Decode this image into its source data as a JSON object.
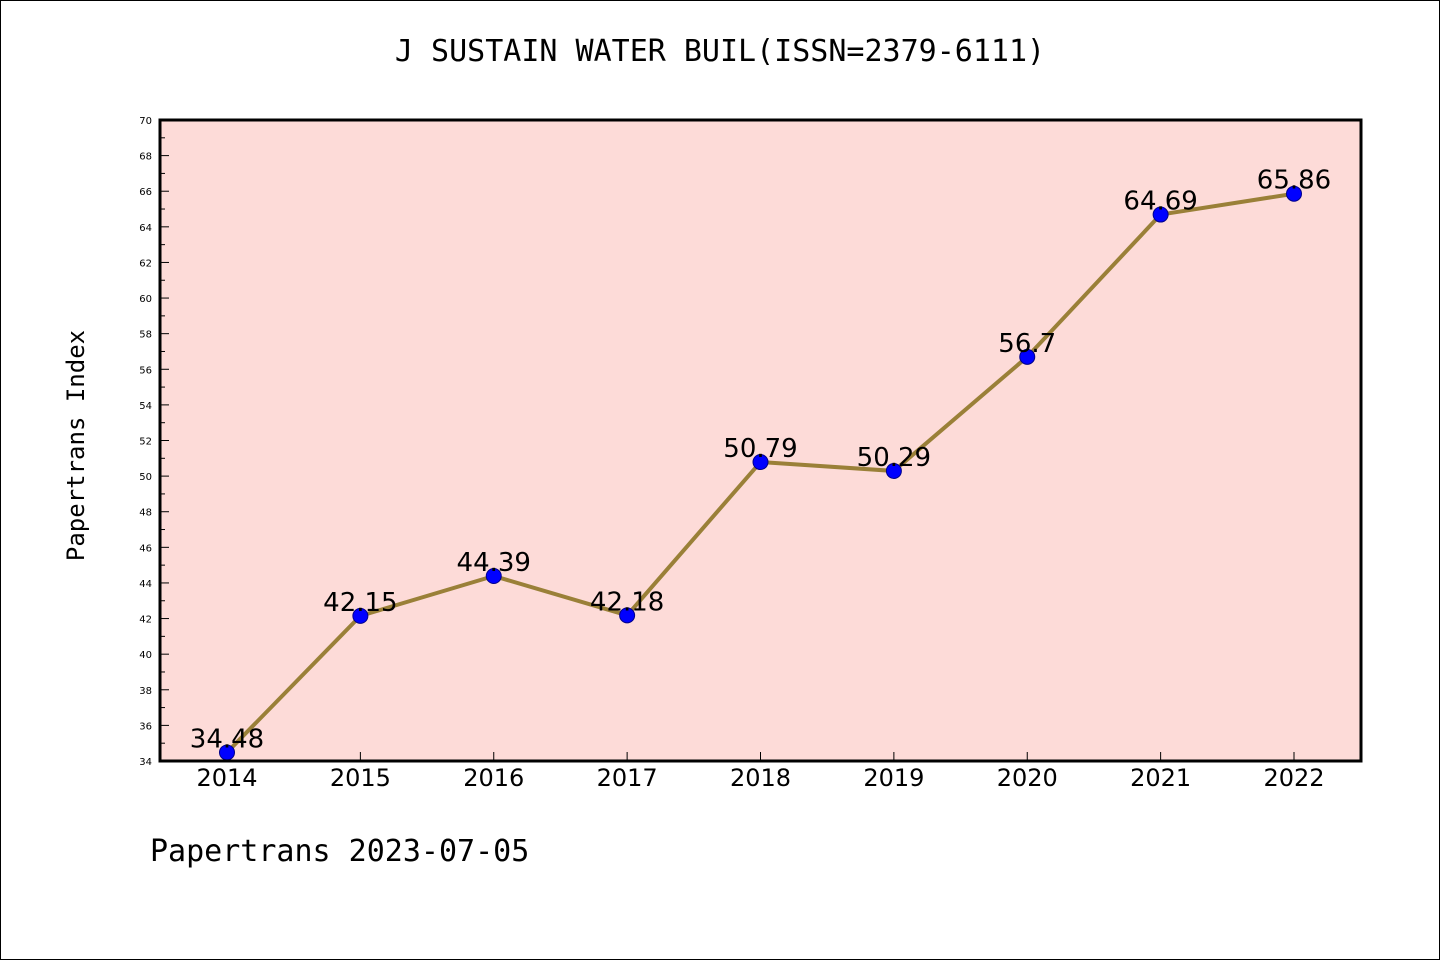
{
  "title": "J SUSTAIN WATER BUIL(ISSN=2379-6111)",
  "footer": "Papertrans 2023-07-05",
  "colors": {
    "plot_background": "#fddbd8",
    "line": "#9a8038",
    "marker": "#0000ff",
    "marker_edge": "#00008b"
  },
  "chart_data": {
    "type": "line",
    "title": "J SUSTAIN WATER BUIL(ISSN=2379-6111)",
    "xlabel": "",
    "ylabel": "Papertrans Index",
    "categories": [
      "2014",
      "2015",
      "2016",
      "2017",
      "2018",
      "2019",
      "2020",
      "2021",
      "2022"
    ],
    "series": [
      {
        "values": [
          34.48,
          42.15,
          44.39,
          42.18,
          50.79,
          50.29,
          56.7,
          64.69,
          65.86
        ],
        "labels": [
          "34.48",
          "42.15",
          "44.39",
          "42.18",
          "50.79",
          "50.29",
          "56.7",
          "64.69",
          "65.86"
        ]
      }
    ],
    "ylim": [
      34,
      70
    ],
    "yticks": [
      "34",
      "36",
      "38",
      "40",
      "42",
      "44",
      "46",
      "48",
      "50",
      "52",
      "54",
      "56",
      "58",
      "60",
      "62",
      "64",
      "66",
      "68",
      "70"
    ],
    "grid": false,
    "legend": "none"
  }
}
